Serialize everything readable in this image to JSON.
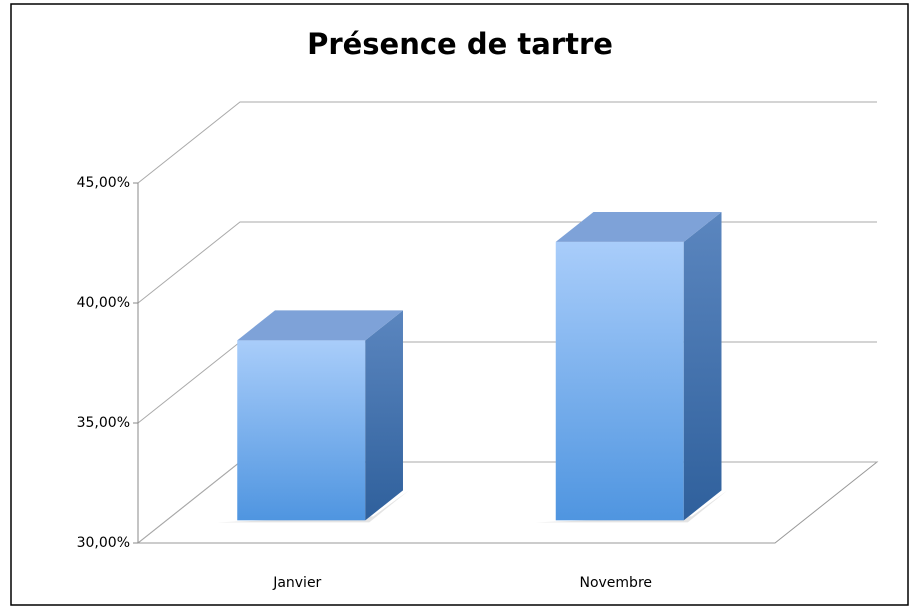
{
  "chart_data": {
    "type": "bar3d",
    "title": "Présence de tartre",
    "categories": [
      "Janvier",
      "Novembre"
    ],
    "values": [
      37.5,
      41.6
    ],
    "color": "#6aa6ec",
    "ylim": [
      30,
      45
    ],
    "yticks": [
      {
        "value": 30,
        "label": "30,00%"
      },
      {
        "value": 35,
        "label": "35,00%"
      },
      {
        "value": 40,
        "label": "40,00%"
      },
      {
        "value": 45,
        "label": "45,00%"
      }
    ],
    "grid": true
  }
}
